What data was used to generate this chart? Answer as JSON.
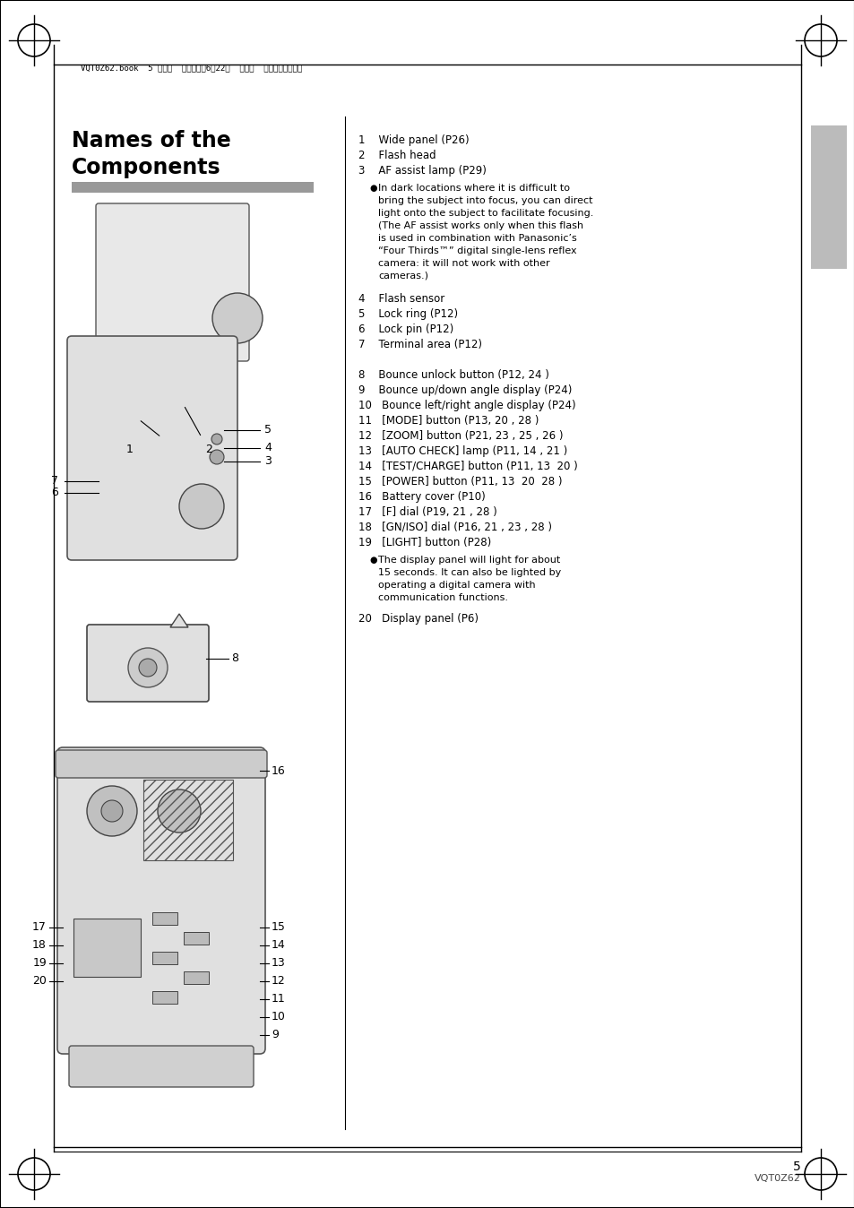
{
  "bg_color": "#ffffff",
  "page_bg": "#ffffff",
  "title": "Names of the\nComponents",
  "header_text": "VQT0Z62.book  5 ページ  ２００６年6月22日  木曜日  午前１１時４６分",
  "footer_page": "5",
  "footer_code": "VQT0Z62",
  "items_col1": [
    "1    Wide panel (P26)",
    "2    Flash head",
    "3    AF assist lamp (P29)",
    "4    Flash sensor",
    "5    Lock ring (P12)",
    "6    Lock pin (P12)",
    "7    Terminal area (P12)"
  ],
  "bullet1": "In dark locations where it is difficult to\nbring the subject into focus, you can direct\nlight onto the subject to facilitate focusing.\n(The AF assist works only when this flash\nis used in combination with Panasonic’s\n“Four Thirds™” digital single-lens reflex\ncamera: it will not work with other\ncameras.)",
  "items_col2": [
    "8    Bounce unlock button (P12, 24 )",
    "9    Bounce up/down angle display (P24)",
    "10   Bounce left/right angle display (P24)",
    "11   [MODE] button (P13, 20 , 28 )",
    "12   [ZOOM] button (P21, 23 , 25 , 26 )",
    "13   [AUTO CHECK] lamp (P11, 14 , 21 )",
    "14   [TEST/CHARGE] button (P11, 13  20 )",
    "15   [POWER] button (P11, 13  20  28 )",
    "16   Battery cover (P10)",
    "17   [F] dial (P19, 21 , 28 )",
    "18   [GN/ISO] dial (P16, 21 , 23 , 28 )",
    "19   [LIGHT] button (P28)"
  ],
  "bullet2": "The display panel will light for about\n15 seconds. It can also be lighted by\noperating a digital camera with\ncommunication functions.",
  "item20": "20   Display panel (P6)",
  "gray_bar_color": "#888888",
  "light_gray": "#c8c8c8",
  "dark_gray": "#555555",
  "line_color": "#000000",
  "text_color": "#000000"
}
